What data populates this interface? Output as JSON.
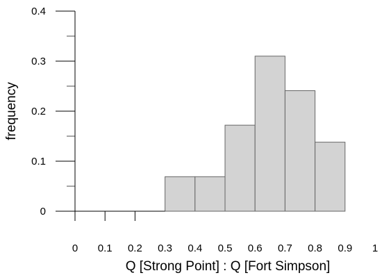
{
  "chart_data": {
    "type": "bar",
    "subtype": "histogram",
    "xlabel": "Q [Strong Point] : Q [Fort Simpson]",
    "ylabel": "frequency",
    "xlim": [
      0,
      1
    ],
    "ylim": [
      0,
      0.4
    ],
    "x_ticks": [
      "0",
      "0.1",
      "0.2",
      "0.3",
      "0.4",
      "0.5",
      "0.6",
      "0.7",
      "0.8",
      "0.9",
      "1"
    ],
    "y_ticks": [
      "0",
      "0.1",
      "0.2",
      "0.3",
      "0.4"
    ],
    "bins": [
      {
        "start": 0.3,
        "end": 0.4,
        "value": 0.069
      },
      {
        "start": 0.4,
        "end": 0.5,
        "value": 0.069
      },
      {
        "start": 0.5,
        "end": 0.6,
        "value": 0.172
      },
      {
        "start": 0.6,
        "end": 0.7,
        "value": 0.31
      },
      {
        "start": 0.7,
        "end": 0.8,
        "value": 0.241
      },
      {
        "start": 0.8,
        "end": 0.9,
        "value": 0.138
      }
    ],
    "bar_color": "#d3d3d3",
    "bar_edge_color": "#666666",
    "grid": false,
    "legend": "none"
  }
}
